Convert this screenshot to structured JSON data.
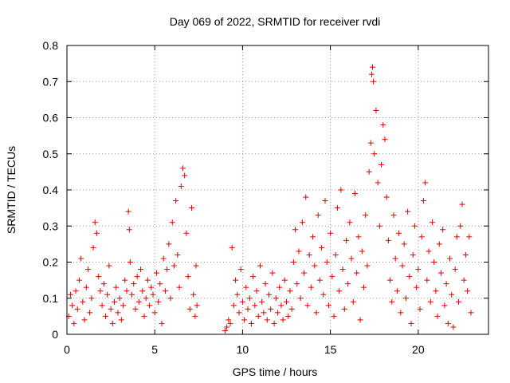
{
  "chart_data": {
    "type": "scatter",
    "title": "Day 069 of 2022, SRMTID for receiver rvdi",
    "xlabel": "GPS time / hours",
    "ylabel": "SRMTID / TECUs",
    "xlim": [
      0,
      24
    ],
    "ylim": [
      0,
      0.8
    ],
    "xticks": [
      "0",
      "5",
      "10",
      "15",
      "20"
    ],
    "yticks": [
      "0",
      "0.1",
      "0.2",
      "0.3",
      "0.4",
      "0.5",
      "0.6",
      "0.7",
      "0.8"
    ],
    "grid": true,
    "marker": "plus",
    "marker_color": "#e00000",
    "series": [
      {
        "name": "SRMTID",
        "points": [
          [
            0.1,
            0.05
          ],
          [
            0.2,
            0.11
          ],
          [
            0.3,
            0.08
          ],
          [
            0.4,
            0.03
          ],
          [
            0.5,
            0.12
          ],
          [
            0.6,
            0.07
          ],
          [
            0.7,
            0.15
          ],
          [
            0.8,
            0.21
          ],
          [
            0.9,
            0.09
          ],
          [
            1.0,
            0.04
          ],
          [
            1.1,
            0.13
          ],
          [
            1.2,
            0.18
          ],
          [
            1.3,
            0.06
          ],
          [
            1.4,
            0.1
          ],
          [
            1.5,
            0.24
          ],
          [
            1.6,
            0.31
          ],
          [
            1.7,
            0.28
          ],
          [
            1.8,
            0.16
          ],
          [
            1.9,
            0.12
          ],
          [
            2.0,
            0.08
          ],
          [
            2.1,
            0.14
          ],
          [
            2.2,
            0.05
          ],
          [
            2.3,
            0.11
          ],
          [
            2.4,
            0.19
          ],
          [
            2.5,
            0.07
          ],
          [
            2.6,
            0.03
          ],
          [
            2.7,
            0.09
          ],
          [
            2.8,
            0.13
          ],
          [
            2.9,
            0.06
          ],
          [
            3.0,
            0.1
          ],
          [
            3.1,
            0.04
          ],
          [
            3.2,
            0.08
          ],
          [
            3.3,
            0.15
          ],
          [
            3.4,
            0.12
          ],
          [
            3.5,
            0.34
          ],
          [
            3.55,
            0.29
          ],
          [
            3.6,
            0.2
          ],
          [
            3.7,
            0.11
          ],
          [
            3.8,
            0.14
          ],
          [
            3.9,
            0.07
          ],
          [
            4.0,
            0.16
          ],
          [
            4.1,
            0.09
          ],
          [
            4.2,
            0.18
          ],
          [
            4.3,
            0.12
          ],
          [
            4.4,
            0.05
          ],
          [
            4.5,
            0.1
          ],
          [
            4.6,
            0.15
          ],
          [
            4.7,
            0.08
          ],
          [
            4.8,
            0.13
          ],
          [
            4.9,
            0.11
          ],
          [
            5.0,
            0.06
          ],
          [
            5.1,
            0.17
          ],
          [
            5.2,
            0.09
          ],
          [
            5.3,
            0.14
          ],
          [
            5.4,
            0.03
          ],
          [
            5.5,
            0.21
          ],
          [
            5.6,
            0.12
          ],
          [
            5.7,
            0.18
          ],
          [
            5.8,
            0.25
          ],
          [
            5.9,
            0.1
          ],
          [
            6.0,
            0.31
          ],
          [
            6.1,
            0.19
          ],
          [
            6.2,
            0.37
          ],
          [
            6.3,
            0.22
          ],
          [
            6.4,
            0.13
          ],
          [
            6.5,
            0.41
          ],
          [
            6.6,
            0.46
          ],
          [
            6.7,
            0.44
          ],
          [
            6.8,
            0.28
          ],
          [
            6.9,
            0.16
          ],
          [
            7.0,
            0.07
          ],
          [
            7.1,
            0.35
          ],
          [
            7.2,
            0.11
          ],
          [
            7.3,
            0.05
          ],
          [
            7.35,
            0.19
          ],
          [
            7.4,
            0.08
          ],
          [
            9.0,
            0.01
          ],
          [
            9.1,
            0.02
          ],
          [
            9.2,
            0.04
          ],
          [
            9.3,
            0.03
          ],
          [
            9.4,
            0.24
          ],
          [
            9.5,
            0.08
          ],
          [
            9.6,
            0.15
          ],
          [
            9.7,
            0.11
          ],
          [
            9.8,
            0.06
          ],
          [
            9.9,
            0.18
          ],
          [
            10.0,
            0.09
          ],
          [
            10.1,
            0.04
          ],
          [
            10.2,
            0.13
          ],
          [
            10.3,
            0.07
          ],
          [
            10.4,
            0.1
          ],
          [
            10.5,
            0.03
          ],
          [
            10.6,
            0.16
          ],
          [
            10.7,
            0.08
          ],
          [
            10.8,
            0.12
          ],
          [
            10.9,
            0.05
          ],
          [
            11.0,
            0.19
          ],
          [
            11.1,
            0.09
          ],
          [
            11.2,
            0.06
          ],
          [
            11.3,
            0.14
          ],
          [
            11.4,
            0.04
          ],
          [
            11.5,
            0.11
          ],
          [
            11.6,
            0.07
          ],
          [
            11.7,
            0.17
          ],
          [
            11.8,
            0.03
          ],
          [
            11.9,
            0.1
          ],
          [
            12.0,
            0.06
          ],
          [
            12.1,
            0.13
          ],
          [
            12.2,
            0.08
          ],
          [
            12.3,
            0.04
          ],
          [
            12.4,
            0.15
          ],
          [
            12.5,
            0.09
          ],
          [
            12.6,
            0.05
          ],
          [
            12.7,
            0.12
          ],
          [
            12.8,
            0.07
          ],
          [
            12.9,
            0.2
          ],
          [
            13.0,
            0.29
          ],
          [
            13.1,
            0.14
          ],
          [
            13.2,
            0.23
          ],
          [
            13.3,
            0.1
          ],
          [
            13.4,
            0.31
          ],
          [
            13.5,
            0.17
          ],
          [
            13.6,
            0.38
          ],
          [
            13.7,
            0.08
          ],
          [
            13.8,
            0.22
          ],
          [
            13.9,
            0.13
          ],
          [
            14.0,
            0.27
          ],
          [
            14.1,
            0.19
          ],
          [
            14.2,
            0.06
          ],
          [
            14.3,
            0.33
          ],
          [
            14.4,
            0.15
          ],
          [
            14.5,
            0.24
          ],
          [
            14.6,
            0.11
          ],
          [
            14.7,
            0.37
          ],
          [
            14.8,
            0.2
          ],
          [
            14.9,
            0.08
          ],
          [
            15.0,
            0.28
          ],
          [
            15.1,
            0.16
          ],
          [
            15.2,
            0.05
          ],
          [
            15.3,
            0.22
          ],
          [
            15.4,
            0.35
          ],
          [
            15.5,
            0.12
          ],
          [
            15.6,
            0.4
          ],
          [
            15.7,
            0.18
          ],
          [
            15.8,
            0.07
          ],
          [
            15.9,
            0.26
          ],
          [
            16.0,
            0.14
          ],
          [
            16.1,
            0.31
          ],
          [
            16.2,
            0.21
          ],
          [
            16.3,
            0.09
          ],
          [
            16.4,
            0.39
          ],
          [
            16.5,
            0.17
          ],
          [
            16.6,
            0.27
          ],
          [
            16.7,
            0.04
          ],
          [
            16.8,
            0.23
          ],
          [
            16.9,
            0.13
          ],
          [
            17.0,
            0.33
          ],
          [
            17.1,
            0.19
          ],
          [
            17.2,
            0.45
          ],
          [
            17.3,
            0.53
          ],
          [
            17.35,
            0.72
          ],
          [
            17.4,
            0.74
          ],
          [
            17.45,
            0.7
          ],
          [
            17.5,
            0.5
          ],
          [
            17.6,
            0.62
          ],
          [
            17.7,
            0.42
          ],
          [
            17.8,
            0.3
          ],
          [
            17.9,
            0.47
          ],
          [
            18.0,
            0.58
          ],
          [
            18.1,
            0.54
          ],
          [
            18.2,
            0.38
          ],
          [
            18.3,
            0.26
          ],
          [
            18.4,
            0.15
          ],
          [
            18.5,
            0.09
          ],
          [
            18.6,
            0.33
          ],
          [
            18.7,
            0.21
          ],
          [
            18.8,
            0.12
          ],
          [
            18.9,
            0.28
          ],
          [
            19.0,
            0.06
          ],
          [
            19.1,
            0.19
          ],
          [
            19.2,
            0.25
          ],
          [
            19.3,
            0.1
          ],
          [
            19.4,
            0.34
          ],
          [
            19.5,
            0.16
          ],
          [
            19.6,
            0.03
          ],
          [
            19.7,
            0.22
          ],
          [
            19.8,
            0.3
          ],
          [
            19.9,
            0.13
          ],
          [
            20.0,
            0.18
          ],
          [
            20.1,
            0.07
          ],
          [
            20.2,
            0.27
          ],
          [
            20.3,
            0.37
          ],
          [
            20.4,
            0.42
          ],
          [
            20.5,
            0.15
          ],
          [
            20.6,
            0.23
          ],
          [
            20.7,
            0.09
          ],
          [
            20.8,
            0.31
          ],
          [
            20.9,
            0.2
          ],
          [
            21.0,
            0.12
          ],
          [
            21.1,
            0.05
          ],
          [
            21.2,
            0.25
          ],
          [
            21.3,
            0.17
          ],
          [
            21.4,
            0.29
          ],
          [
            21.5,
            0.08
          ],
          [
            21.6,
            0.14
          ],
          [
            21.7,
            0.03
          ],
          [
            21.8,
            0.21
          ],
          [
            21.9,
            0.11
          ],
          [
            22.0,
            0.02
          ],
          [
            22.1,
            0.18
          ],
          [
            22.2,
            0.27
          ],
          [
            22.3,
            0.09
          ],
          [
            22.4,
            0.3
          ],
          [
            22.5,
            0.36
          ],
          [
            22.6,
            0.15
          ],
          [
            22.7,
            0.22
          ],
          [
            22.8,
            0.12
          ],
          [
            22.9,
            0.27
          ],
          [
            23.0,
            0.06
          ]
        ]
      }
    ]
  }
}
